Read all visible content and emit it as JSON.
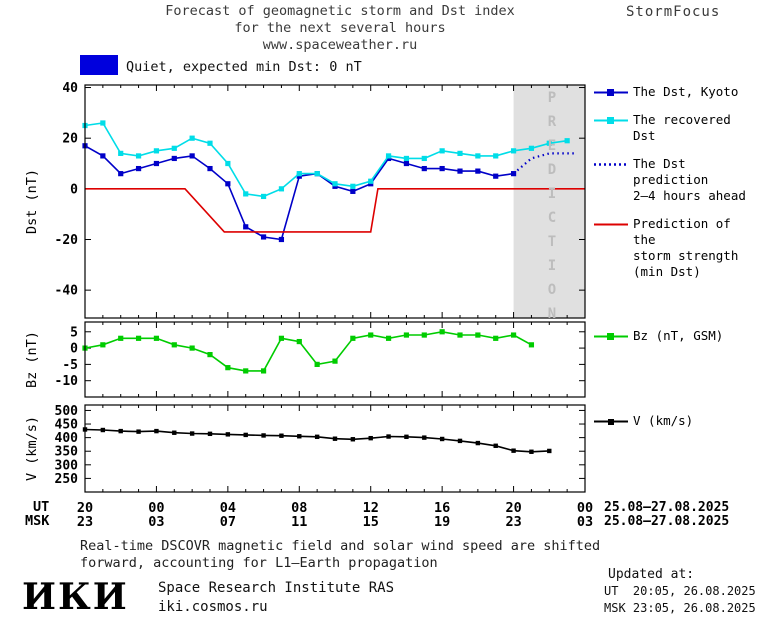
{
  "header": {
    "title_line1": "Forecast of geomagnetic storm and Dst index",
    "title_line2": "for the next several hours",
    "title_line3": "www.spaceweather.ru",
    "brand": "StormFocus"
  },
  "banner": {
    "label": "Quiet, expected min Dst: 0 nT"
  },
  "colors": {
    "dst": "#0000c8",
    "recovered": "#00dde8",
    "prediction": "#0000c8",
    "storm": "#dd0000",
    "bz": "#00cc00",
    "v": "#000000",
    "band": "#e0e0e0",
    "banner": "#0000dd"
  },
  "prediction_band": {
    "label": "PREDICTION",
    "start_hour": 24,
    "end_hour": 28
  },
  "legend_main": [
    {
      "id": "dst",
      "lines": [
        "The Dst, Kyoto"
      ]
    },
    {
      "id": "recovered",
      "lines": [
        "The recovered Dst"
      ]
    },
    {
      "id": "prediction",
      "lines": [
        "The Dst prediction",
        "2—4 hours ahead"
      ]
    },
    {
      "id": "storm",
      "lines": [
        "Prediction of the",
        "storm strength",
        "(min Dst)"
      ]
    }
  ],
  "legend_bz": {
    "lines": [
      "Bz (nT, GSM)"
    ]
  },
  "legend_v": {
    "lines": [
      "V (km/s)"
    ]
  },
  "chart_data": [
    {
      "type": "line",
      "panel": "dst",
      "title": "Forecast of geomagnetic storm and Dst index for the next several hours",
      "ylabel": "Dst (nT)",
      "xlabel": "hours (UT/MSK), 25.08—27.08.2025",
      "xlim": [
        0,
        28
      ],
      "ylim": [
        -51,
        41
      ],
      "yticks": [
        40,
        20,
        0,
        -20,
        -40
      ],
      "xticks_hours": [
        0,
        4,
        8,
        12,
        16,
        20,
        24,
        28
      ],
      "grid": false,
      "legend_position": "right",
      "series": [
        {
          "name": "The Dst, Kyoto",
          "color_key": "dst",
          "marker": "square",
          "x": [
            0,
            1,
            2,
            3,
            4,
            5,
            6,
            7,
            8,
            9,
            10,
            11,
            12,
            13,
            14,
            15,
            16,
            17,
            18,
            19,
            20,
            21,
            22,
            23,
            24
          ],
          "y": [
            17,
            13,
            6,
            8,
            10,
            12,
            13,
            8,
            2,
            -15,
            -19,
            -20,
            5,
            6,
            1,
            -1,
            2,
            12,
            10,
            8,
            8,
            7,
            7,
            5,
            6
          ]
        },
        {
          "name": "The recovered Dst",
          "color_key": "recovered",
          "marker": "square",
          "x": [
            0,
            1,
            2,
            3,
            4,
            5,
            6,
            7,
            8,
            9,
            10,
            11,
            12,
            13,
            14,
            15,
            16,
            17,
            18,
            19,
            20,
            21,
            22,
            23,
            24,
            25,
            26,
            27
          ],
          "y": [
            25,
            26,
            14,
            13,
            15,
            16,
            20,
            18,
            10,
            -2,
            -3,
            0,
            6,
            6,
            2,
            1,
            3,
            13,
            12,
            12,
            15,
            14,
            13,
            13,
            15,
            16,
            18,
            19
          ]
        },
        {
          "name": "The Dst prediction 2—4 hours ahead",
          "color_key": "prediction",
          "style": "dotted",
          "x": [
            24,
            25,
            26,
            27.4
          ],
          "y": [
            6,
            12,
            14,
            14
          ]
        },
        {
          "name": "Prediction of the storm strength (min Dst)",
          "color_key": "storm",
          "x": [
            0,
            5.6,
            7.8,
            16,
            16.4,
            28
          ],
          "y": [
            0,
            0,
            -17,
            -17,
            0,
            0
          ]
        }
      ]
    },
    {
      "type": "line",
      "panel": "bz",
      "ylabel": "Bz (nT)",
      "xlim": [
        0,
        28
      ],
      "ylim": [
        -15,
        8
      ],
      "yticks": [
        5,
        0,
        -5,
        -10
      ],
      "xticks_hours": [
        0,
        4,
        8,
        12,
        16,
        20,
        24,
        28
      ],
      "grid": false,
      "series": [
        {
          "name": "Bz (nT, GSM)",
          "color_key": "bz",
          "marker": "square",
          "x": [
            0,
            1,
            2,
            3,
            4,
            5,
            6,
            7,
            8,
            9,
            10,
            11,
            12,
            13,
            14,
            15,
            16,
            17,
            18,
            19,
            20,
            21,
            22,
            23,
            24,
            25
          ],
          "y": [
            0,
            1,
            3,
            3,
            3,
            1,
            0,
            -2,
            -6,
            -7,
            -7,
            3,
            2,
            -5,
            -4,
            3,
            4,
            3,
            4,
            4,
            5,
            4,
            4,
            3,
            4,
            1
          ]
        }
      ]
    },
    {
      "type": "line",
      "panel": "v",
      "ylabel": "V (km/s)",
      "xlim": [
        0,
        28
      ],
      "ylim": [
        200,
        520
      ],
      "yticks": [
        500,
        450,
        400,
        350,
        300,
        250
      ],
      "xticks_hours": [
        0,
        4,
        8,
        12,
        16,
        20,
        24,
        28
      ],
      "grid": false,
      "series": [
        {
          "name": "V (km/s)",
          "color_key": "v",
          "marker": "square",
          "x": [
            0,
            1,
            2,
            3,
            4,
            5,
            6,
            7,
            8,
            9,
            10,
            11,
            12,
            13,
            14,
            15,
            16,
            17,
            18,
            19,
            20,
            21,
            22,
            23,
            24,
            25,
            26
          ],
          "y": [
            430,
            428,
            424,
            422,
            424,
            418,
            415,
            414,
            412,
            410,
            408,
            407,
            405,
            403,
            396,
            394,
            398,
            404,
            403,
            400,
            395,
            388,
            380,
            370,
            352,
            348,
            351
          ]
        }
      ]
    }
  ],
  "xaxis": {
    "ut_label": "UT",
    "msk_label": "MSK",
    "ut_ticks": [
      "20",
      "00",
      "04",
      "08",
      "12",
      "16",
      "20",
      "00"
    ],
    "msk_ticks": [
      "23",
      "03",
      "07",
      "11",
      "15",
      "19",
      "23",
      "03"
    ],
    "ut_date_range": "25.08—27.08.2025",
    "msk_date_range": "25.08—27.08.2025"
  },
  "footnote": {
    "line1": "Real-time DSCOVR magnetic field and solar wind speed are shifted",
    "line2": "forward, accounting for L1—Earth propagation"
  },
  "footer": {
    "logo": "ИКИ",
    "institute": "Space Research Institute RAS",
    "website": "iki.cosmos.ru",
    "updated_label": "Updated at:",
    "updated_ut": "UT  20:05, 26.08.2025",
    "updated_msk": "MSK 23:05, 26.08.2025"
  }
}
